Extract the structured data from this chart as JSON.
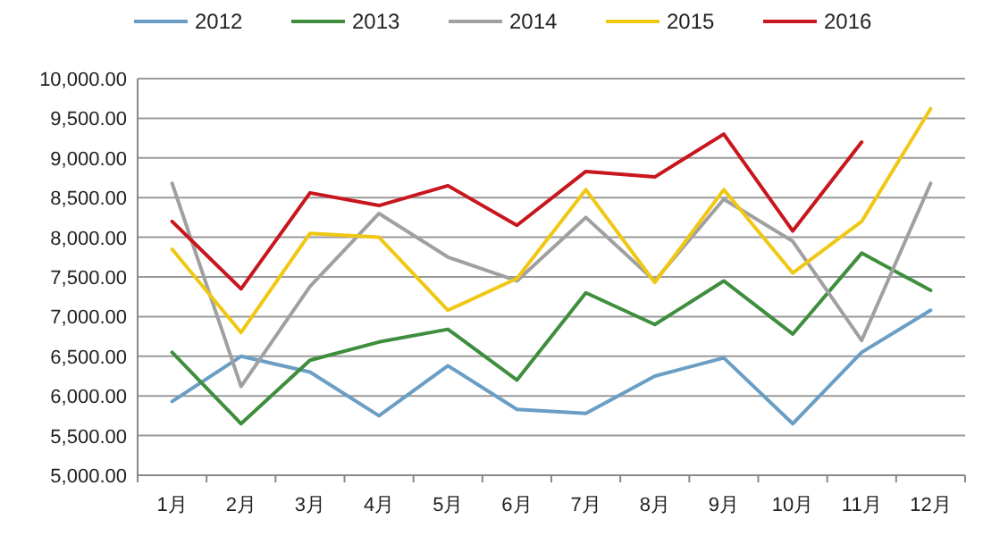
{
  "chart_data": {
    "type": "line",
    "categories": [
      "1月",
      "2月",
      "3月",
      "4月",
      "5月",
      "6月",
      "7月",
      "8月",
      "9月",
      "10月",
      "11月",
      "12月"
    ],
    "series": [
      {
        "name": "2012",
        "color": "#6a9ec4",
        "values": [
          5930,
          6500,
          6300,
          5750,
          6380,
          5830,
          5780,
          6250,
          6480,
          5650,
          6550,
          7080
        ]
      },
      {
        "name": "2013",
        "color": "#3e8e3e",
        "values": [
          6550,
          5650,
          6450,
          6680,
          6840,
          6200,
          7300,
          6900,
          7450,
          6780,
          7800,
          7330
        ]
      },
      {
        "name": "2014",
        "color": "#a0a0a0",
        "values": [
          8680,
          6120,
          7380,
          8300,
          7750,
          7450,
          8250,
          7450,
          8480,
          7950,
          6700,
          8680
        ]
      },
      {
        "name": "2015",
        "color": "#f0c814",
        "values": [
          7850,
          6800,
          8050,
          8000,
          7080,
          7480,
          8600,
          7430,
          8600,
          7550,
          8200,
          9620
        ]
      },
      {
        "name": "2016",
        "color": "#c8161d",
        "values": [
          8200,
          7350,
          8560,
          8400,
          8650,
          8150,
          8830,
          8760,
          9300,
          8080,
          9200,
          null
        ]
      }
    ],
    "ylim": [
      5000,
      10000
    ],
    "yticks": [
      {
        "value": 5000,
        "label": "5,000.00"
      },
      {
        "value": 5500,
        "label": "5,500.00"
      },
      {
        "value": 6000,
        "label": "6,000.00"
      },
      {
        "value": 6500,
        "label": "6,500.00"
      },
      {
        "value": 7000,
        "label": "7,000.00"
      },
      {
        "value": 7500,
        "label": "7,500.00"
      },
      {
        "value": 8000,
        "label": "8,000.00"
      },
      {
        "value": 8500,
        "label": "8,500.00"
      },
      {
        "value": 9000,
        "label": "9,000.00"
      },
      {
        "value": 9500,
        "label": "9,500.00"
      },
      {
        "value": 10000,
        "label": "10,000.00"
      }
    ],
    "grid": "y",
    "legend": "top",
    "marker": "none",
    "line_style": "solid"
  }
}
